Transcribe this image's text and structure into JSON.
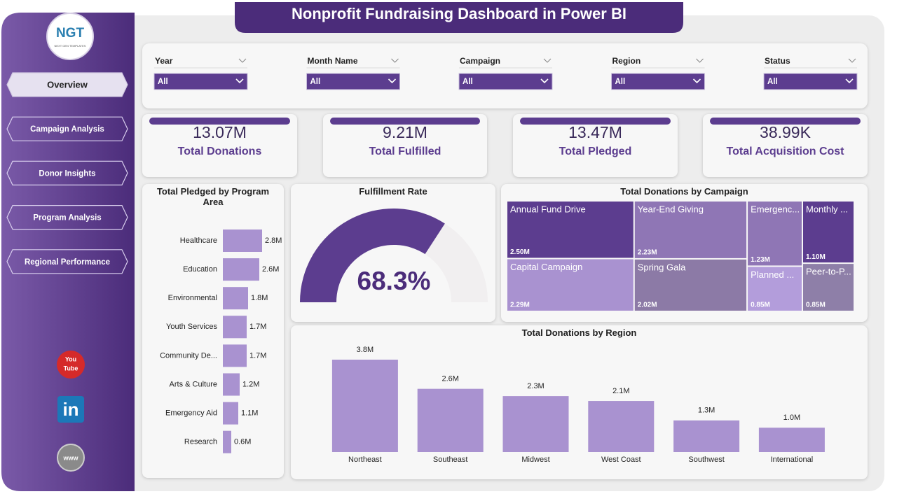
{
  "title": "Nonprofit Fundraising Dashboard in Power BI",
  "logo": {
    "text": "NGT",
    "subtext": "NEXT GEN TEMPLATES"
  },
  "nav": [
    "Overview",
    "Campaign Analysis",
    "Donor Insights",
    "Program Analysis",
    "Regional Performance"
  ],
  "social": [
    "You",
    "Tube",
    "in",
    "www"
  ],
  "filters": [
    {
      "label": "Year",
      "selection": "All"
    },
    {
      "label": "Month Name",
      "selection": "All"
    },
    {
      "label": "Campaign",
      "selection": "All"
    },
    {
      "label": "Region",
      "selection": "All"
    },
    {
      "label": "Status",
      "selection": "All"
    }
  ],
  "kpis": [
    {
      "value": "13.07M",
      "label": "Total Donations"
    },
    {
      "value": "9.21M",
      "label": "Total Fulfilled"
    },
    {
      "value": "13.47M",
      "label": "Total Pledged"
    },
    {
      "value": "38.99K",
      "label": "Total Acquisition Cost"
    }
  ],
  "chart_data": [
    {
      "type": "bar",
      "orientation": "horizontal",
      "title": "Total Pledged by Program Area",
      "categories": [
        "Healthcare",
        "Education",
        "Environmental",
        "Youth Services",
        "Community De...",
        "Arts & Culture",
        "Emergency Aid",
        "Research"
      ],
      "values": [
        2800000,
        2600000,
        1800000,
        1700000,
        1700000,
        1200000,
        1100000,
        600000
      ],
      "value_labels": [
        "2.8M",
        "2.6M",
        "1.8M",
        "1.7M",
        "1.7M",
        "1.2M",
        "1.1M",
        "0.6M"
      ],
      "color": "#a992d0"
    },
    {
      "type": "gauge",
      "title": "Fulfillment Rate",
      "value": 68.3,
      "value_label": "68.3%",
      "ylim": [
        0,
        100
      ],
      "color": "#5c3d8f",
      "track_color": "#f1eff0"
    },
    {
      "type": "treemap",
      "title": "Total Donations by Campaign",
      "categories": [
        "Annual Fund Drive",
        "Capital Campaign",
        "Year-End Giving",
        "Spring Gala",
        "Emergenc...",
        "Planned ...",
        "Monthly ...",
        "Peer-to-P..."
      ],
      "values": [
        2500000,
        2290000,
        2230000,
        2020000,
        1230000,
        850000,
        1100000,
        850000
      ],
      "value_labels": [
        "2.50M",
        "2.29M",
        "2.23M",
        "2.02M",
        "1.23M",
        "0.85M",
        "1.10M",
        "0.85M"
      ],
      "colors": [
        "#5c3d8f",
        "#a992d0",
        "#8f76b5",
        "#8c7aa6",
        "#8f76b5",
        "#b39ddb",
        "#5c3d8f",
        "#8e7fa8"
      ]
    },
    {
      "type": "bar",
      "orientation": "vertical",
      "title": "Total Donations by Region",
      "categories": [
        "Northeast",
        "Southeast",
        "Midwest",
        "West Coast",
        "Southwest",
        "International"
      ],
      "values": [
        3800000,
        2600000,
        2300000,
        2100000,
        1300000,
        1000000
      ],
      "value_labels": [
        "3.8M",
        "2.6M",
        "2.3M",
        "2.1M",
        "1.3M",
        "1.0M"
      ],
      "color": "#a992d0"
    }
  ]
}
